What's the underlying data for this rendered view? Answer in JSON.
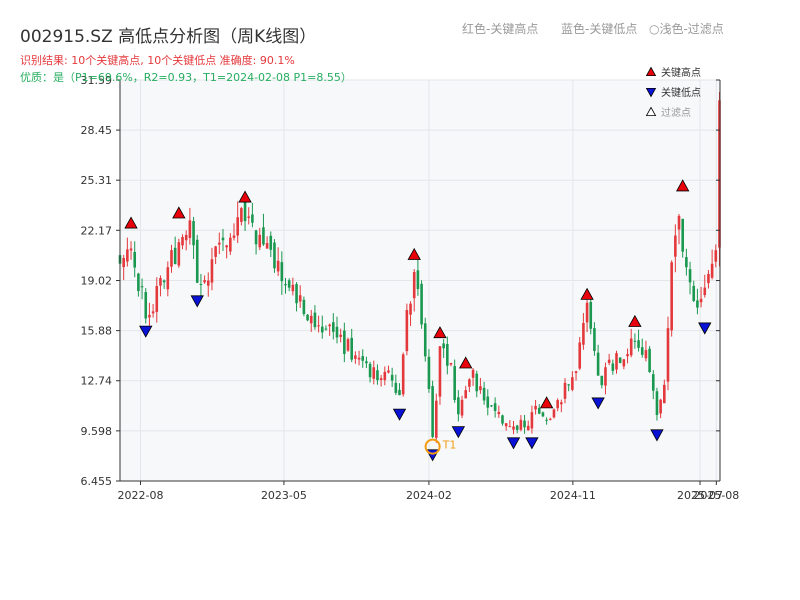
{
  "title": "002915.SZ 高低点分析图（周K线图）",
  "header_legend": {
    "red": "红色-关键高点",
    "blue": "蓝色-关键低点",
    "light": "○浅色-过滤点"
  },
  "result_text": "识别结果: 10个关键高点, 10个关键低点   准确度: 90.1%",
  "quality_text": "优质：是（P1=69.6%，R2=0.93，T1=2024-02-08 P1=8.55）",
  "colors": {
    "up": "#e4393c",
    "down": "#1a9850",
    "high_marker": "#e8000b",
    "low_marker": "#0a12d6",
    "t1": "#f39c12"
  },
  "chart_data": {
    "type": "candlestick",
    "x_axis": {
      "type": "date",
      "range": [
        "2022-06-23",
        "2025-08-08"
      ],
      "ticks": [
        {
          "date": "2022-08-01",
          "label": "2022-08"
        },
        {
          "date": "2023-05-01",
          "label": "2023-05"
        },
        {
          "date": "2024-02-01",
          "label": "2024-02"
        },
        {
          "date": "2024-11-01",
          "label": "2024-11"
        },
        {
          "date": "2025-07-01",
          "label": "2025-07"
        },
        {
          "date": "2025-08-01",
          "label": "2025-08"
        }
      ]
    },
    "y_axis": {
      "ylim": [
        6.455,
        31.59
      ],
      "ticks": [
        6.455,
        9.598,
        12.74,
        15.88,
        19.02,
        22.17,
        25.31,
        28.45,
        31.59
      ],
      "labels": [
        "6.455",
        "9.598",
        "12.74",
        "15.88",
        "19.02",
        "22.17",
        "25.31",
        "28.45",
        "31.59"
      ]
    },
    "grid": true,
    "legend": {
      "placement": "top-right",
      "items": [
        {
          "label": "关键高点",
          "marker": "triangle-up",
          "color": "#e8000b"
        },
        {
          "label": "关键低点",
          "marker": "triangle-down",
          "color": "#0a12d6"
        },
        {
          "label": "过滤点",
          "marker": "triangle-up-hollow",
          "color": "#999999"
        }
      ]
    },
    "anchors": [
      [
        "2022-06-23",
        20.5
      ],
      [
        "2022-07-14",
        21.5
      ],
      [
        "2022-08-11",
        16.6
      ],
      [
        "2022-09-08",
        18.8
      ],
      [
        "2022-10-13",
        20.9
      ],
      [
        "2022-11-03",
        22.0
      ],
      [
        "2022-11-24",
        18.5
      ],
      [
        "2022-12-22",
        20.5
      ],
      [
        "2023-01-19",
        21.8
      ],
      [
        "2023-02-16",
        23.2
      ],
      [
        "2023-03-16",
        21.5
      ],
      [
        "2023-04-20",
        20.2
      ],
      [
        "2023-05-25",
        18.0
      ],
      [
        "2023-06-29",
        16.6
      ],
      [
        "2023-08-03",
        15.9
      ],
      [
        "2023-09-14",
        14.2
      ],
      [
        "2023-10-19",
        13.0
      ],
      [
        "2023-11-16",
        13.1
      ],
      [
        "2023-12-07",
        11.5
      ],
      [
        "2023-12-21",
        16.5
      ],
      [
        "2024-01-04",
        19.6
      ],
      [
        "2024-01-25",
        14.5
      ],
      [
        "2024-02-08",
        9.2
      ],
      [
        "2024-02-22",
        14.8
      ],
      [
        "2024-03-14",
        13.6
      ],
      [
        "2024-03-28",
        10.5
      ],
      [
        "2024-04-25",
        13.0
      ],
      [
        "2024-05-30",
        11.0
      ],
      [
        "2024-07-04",
        9.5
      ],
      [
        "2024-08-01",
        10.0
      ],
      [
        "2024-08-22",
        11.0
      ],
      [
        "2024-09-12",
        10.2
      ],
      [
        "2024-10-10",
        11.8
      ],
      [
        "2024-11-07",
        13.0
      ],
      [
        "2024-11-28",
        17.5
      ],
      [
        "2024-12-19",
        12.5
      ],
      [
        "2025-01-09",
        13.8
      ],
      [
        "2025-01-30",
        14.0
      ],
      [
        "2025-02-27",
        15.5
      ],
      [
        "2025-03-20",
        14.2
      ],
      [
        "2025-04-10",
        10.5
      ],
      [
        "2025-04-24",
        13.0
      ],
      [
        "2025-05-08",
        20.0
      ],
      [
        "2025-05-22",
        23.5
      ],
      [
        "2025-06-05",
        19.0
      ],
      [
        "2025-06-19",
        18.5
      ],
      [
        "2025-07-03",
        17.5
      ],
      [
        "2025-07-17",
        19.5
      ],
      [
        "2025-07-31",
        21.0
      ],
      [
        "2025-08-07",
        29.5
      ]
    ],
    "key_highs": [
      {
        "date": "2022-07-14",
        "value": 22.17
      },
      {
        "date": "2022-10-13",
        "value": 22.8
      },
      {
        "date": "2023-02-16",
        "value": 23.8
      },
      {
        "date": "2024-01-04",
        "value": 20.2
      },
      {
        "date": "2024-02-22",
        "value": 15.3
      },
      {
        "date": "2024-04-11",
        "value": 13.4
      },
      {
        "date": "2024-09-12",
        "value": 10.9
      },
      {
        "date": "2024-11-28",
        "value": 17.7
      },
      {
        "date": "2025-02-27",
        "value": 16.0
      },
      {
        "date": "2025-05-29",
        "value": 24.5
      }
    ],
    "key_lows": [
      {
        "date": "2022-08-11",
        "value": 16.3
      },
      {
        "date": "2022-11-17",
        "value": 18.2
      },
      {
        "date": "2023-12-07",
        "value": 11.1
      },
      {
        "date": "2024-02-08",
        "value": 8.55
      },
      {
        "date": "2024-03-28",
        "value": 10.0
      },
      {
        "date": "2024-07-11",
        "value": 9.3
      },
      {
        "date": "2024-08-15",
        "value": 9.3
      },
      {
        "date": "2024-12-19",
        "value": 11.8
      },
      {
        "date": "2025-04-10",
        "value": 9.8
      },
      {
        "date": "2025-07-10",
        "value": 16.5
      }
    ],
    "t1": {
      "date": "2024-02-08",
      "value": 8.55,
      "label": "T1"
    }
  }
}
